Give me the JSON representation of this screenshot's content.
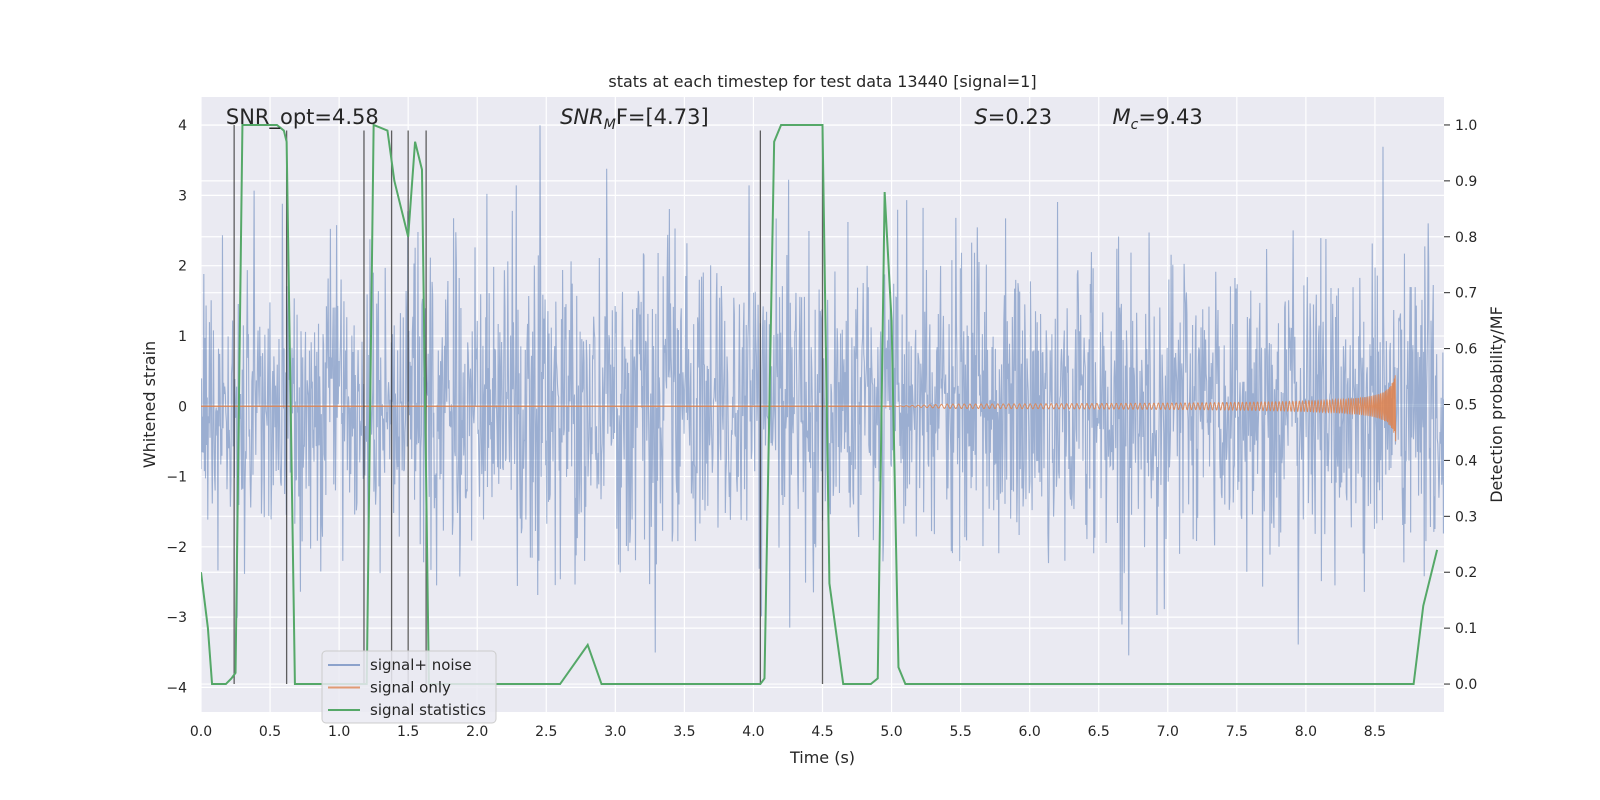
{
  "chart_data": {
    "type": "line",
    "title": "stats at each timestep for test data 13440 [signal=1]",
    "xlabel": "Time (s)",
    "ylabel_left": "Whitened strain",
    "ylabel_right": "Detection probability/MF",
    "xlim": [
      0,
      9.0
    ],
    "ylim_left": [
      -4.35,
      4.4
    ],
    "ylim_right": [
      -0.05,
      1.05
    ],
    "x_ticks": [
      "0.0",
      "0.5",
      "1.0",
      "1.5",
      "2.0",
      "2.5",
      "3.0",
      "3.5",
      "4.0",
      "4.5",
      "5.0",
      "5.5",
      "6.0",
      "6.5",
      "7.0",
      "7.5",
      "8.0",
      "8.5"
    ],
    "x_tick_values": [
      0,
      0.5,
      1.0,
      1.5,
      2.0,
      2.5,
      3.0,
      3.5,
      4.0,
      4.5,
      5.0,
      5.5,
      6.0,
      6.5,
      7.0,
      7.5,
      8.0,
      8.5
    ],
    "y_left_ticks": [
      "4",
      "3",
      "2",
      "1",
      "0",
      "−1",
      "−2",
      "−3",
      "−4"
    ],
    "y_left_tick_values": [
      4,
      3,
      2,
      1,
      0,
      -1,
      -2,
      -3,
      -4
    ],
    "y_right_ticks": [
      "1.0",
      "0.9",
      "0.8",
      "0.7",
      "0.6",
      "0.5",
      "0.4",
      "0.3",
      "0.2",
      "0.1",
      "0.0"
    ],
    "y_right_tick_values": [
      1.0,
      0.9,
      0.8,
      0.7,
      0.6,
      0.5,
      0.4,
      0.3,
      0.2,
      0.1,
      0.0
    ],
    "annotations": [
      {
        "prefix": "SNR_opt=",
        "value": "4.58",
        "x": 0.18
      },
      {
        "prefix": "SNR",
        "sub": "M",
        "suffix": "F=[4.73]",
        "italic": true,
        "x": 2.6
      },
      {
        "prefix": "S",
        "suffix": "=0.23",
        "italic": true,
        "x": 5.6
      },
      {
        "prefix": "M",
        "sub": "c",
        "suffix": "=9.43",
        "italic": true,
        "x": 6.6
      }
    ],
    "series": [
      {
        "name": "signal+ noise",
        "color": "#4c72b0",
        "kind": "noise",
        "amplitude_envelope": 2.2,
        "peak_max": 4.0,
        "peak_min": -3.9
      },
      {
        "name": "signal only",
        "color": "#dd8452",
        "kind": "chirp",
        "start": 5.0,
        "end": 8.65,
        "peak_amplitude": 0.65
      },
      {
        "name": "signal statistics",
        "color": "#55a868",
        "axis": "right",
        "x": [
          0.0,
          0.05,
          0.08,
          0.18,
          0.22,
          0.25,
          0.3,
          0.55,
          0.6,
          0.62,
          0.68,
          1.2,
          1.25,
          1.35,
          1.4,
          1.45,
          1.5,
          1.55,
          1.6,
          1.65,
          1.7,
          2.6,
          2.8,
          2.9,
          4.05,
          4.08,
          4.15,
          4.2,
          4.5,
          4.55,
          4.65,
          4.85,
          4.9,
          4.95,
          5.0,
          5.05,
          5.1,
          8.78,
          8.85,
          8.95
        ],
        "y": [
          0.2,
          0.1,
          0.0,
          0.0,
          0.01,
          0.02,
          1.0,
          1.0,
          0.99,
          0.97,
          0.0,
          0.0,
          1.0,
          0.99,
          0.9,
          0.85,
          0.8,
          0.97,
          0.92,
          0.0,
          0.0,
          0.0,
          0.07,
          0.0,
          0.0,
          0.01,
          0.97,
          1.0,
          1.0,
          0.18,
          0.0,
          0.0,
          0.01,
          0.88,
          0.65,
          0.03,
          0.0,
          0.0,
          0.14,
          0.24
        ]
      }
    ],
    "vertical_markers": [
      {
        "x": 0.24,
        "top": 1.0,
        "bottom": 0.0
      },
      {
        "x": 0.62,
        "top": 0.99,
        "bottom": 0.0
      },
      {
        "x": 1.18,
        "top": 0.99,
        "bottom": 0.0
      },
      {
        "x": 1.38,
        "top": 0.99,
        "bottom": 0.0
      },
      {
        "x": 1.5,
        "top": 0.99,
        "bottom": 0.0
      },
      {
        "x": 1.63,
        "top": 0.99,
        "bottom": 0.0
      },
      {
        "x": 4.05,
        "top": 0.99,
        "bottom": 0.0
      },
      {
        "x": 4.5,
        "top": 0.99,
        "bottom": 0.0
      }
    ],
    "grid": true,
    "legend": {
      "position": "lower-left",
      "entries": [
        "signal+ noise",
        "signal only",
        "signal statistics"
      ]
    }
  }
}
